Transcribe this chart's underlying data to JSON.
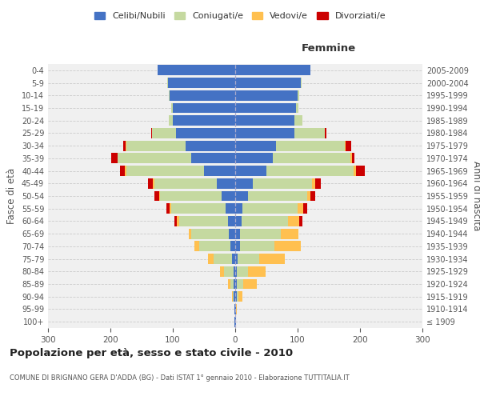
{
  "age_groups": [
    "100+",
    "95-99",
    "90-94",
    "85-89",
    "80-84",
    "75-79",
    "70-74",
    "65-69",
    "60-64",
    "55-59",
    "50-54",
    "45-49",
    "40-44",
    "35-39",
    "30-34",
    "25-29",
    "20-24",
    "15-19",
    "10-14",
    "5-9",
    "0-4"
  ],
  "birth_years": [
    "≤ 1909",
    "1910-1914",
    "1915-1919",
    "1920-1924",
    "1925-1929",
    "1930-1934",
    "1935-1939",
    "1940-1944",
    "1945-1949",
    "1950-1954",
    "1955-1959",
    "1960-1964",
    "1965-1969",
    "1970-1974",
    "1975-1979",
    "1980-1984",
    "1985-1989",
    "1990-1994",
    "1995-1999",
    "2000-2004",
    "2005-2009"
  ],
  "male": {
    "celibi": [
      1,
      1,
      2,
      2,
      3,
      5,
      8,
      10,
      12,
      15,
      22,
      30,
      50,
      70,
      80,
      95,
      100,
      100,
      105,
      108,
      125
    ],
    "coniugati": [
      0,
      0,
      2,
      6,
      15,
      30,
      50,
      60,
      78,
      88,
      98,
      100,
      125,
      118,
      95,
      38,
      7,
      2,
      1,
      1,
      0
    ],
    "vedovi": [
      0,
      0,
      1,
      4,
      7,
      8,
      8,
      5,
      3,
      2,
      2,
      2,
      2,
      1,
      1,
      0,
      0,
      0,
      0,
      0,
      0
    ],
    "divorziati": [
      0,
      0,
      0,
      0,
      0,
      0,
      0,
      0,
      5,
      5,
      7,
      8,
      7,
      10,
      4,
      2,
      0,
      0,
      0,
      0,
      0
    ]
  },
  "female": {
    "nubili": [
      1,
      1,
      2,
      3,
      3,
      4,
      8,
      8,
      10,
      12,
      20,
      28,
      50,
      60,
      65,
      95,
      95,
      98,
      100,
      105,
      120
    ],
    "coniugate": [
      0,
      0,
      3,
      10,
      18,
      35,
      55,
      65,
      75,
      88,
      95,
      95,
      140,
      125,
      110,
      48,
      13,
      3,
      2,
      1,
      0
    ],
    "vedove": [
      0,
      1,
      7,
      22,
      28,
      40,
      42,
      28,
      18,
      9,
      5,
      5,
      4,
      2,
      2,
      1,
      0,
      0,
      0,
      0,
      0
    ],
    "divorziate": [
      0,
      0,
      0,
      0,
      0,
      0,
      0,
      0,
      5,
      7,
      8,
      9,
      14,
      4,
      9,
      2,
      0,
      0,
      0,
      0,
      0
    ]
  },
  "colors": {
    "celibi": "#4472c4",
    "coniugati": "#c5d9a0",
    "vedovi": "#ffc050",
    "divorziati": "#cc0000"
  },
  "xlim": 300,
  "title": "Popolazione per età, sesso e stato civile - 2010",
  "subtitle": "COMUNE DI BRIGNANO GERA D'ADDA (BG) - Dati ISTAT 1° gennaio 2010 - Elaborazione TUTTITALIA.IT",
  "ylabel_left": "Fasce di età",
  "ylabel_right": "Anni di nascita",
  "xlabel_female": "Femmine",
  "legend_labels": [
    "Celibi/Nubili",
    "Coniugati/e",
    "Vedovi/e",
    "Divorziati/e"
  ],
  "bg_color": "#ffffff",
  "plot_bg_color": "#f0f0f0"
}
